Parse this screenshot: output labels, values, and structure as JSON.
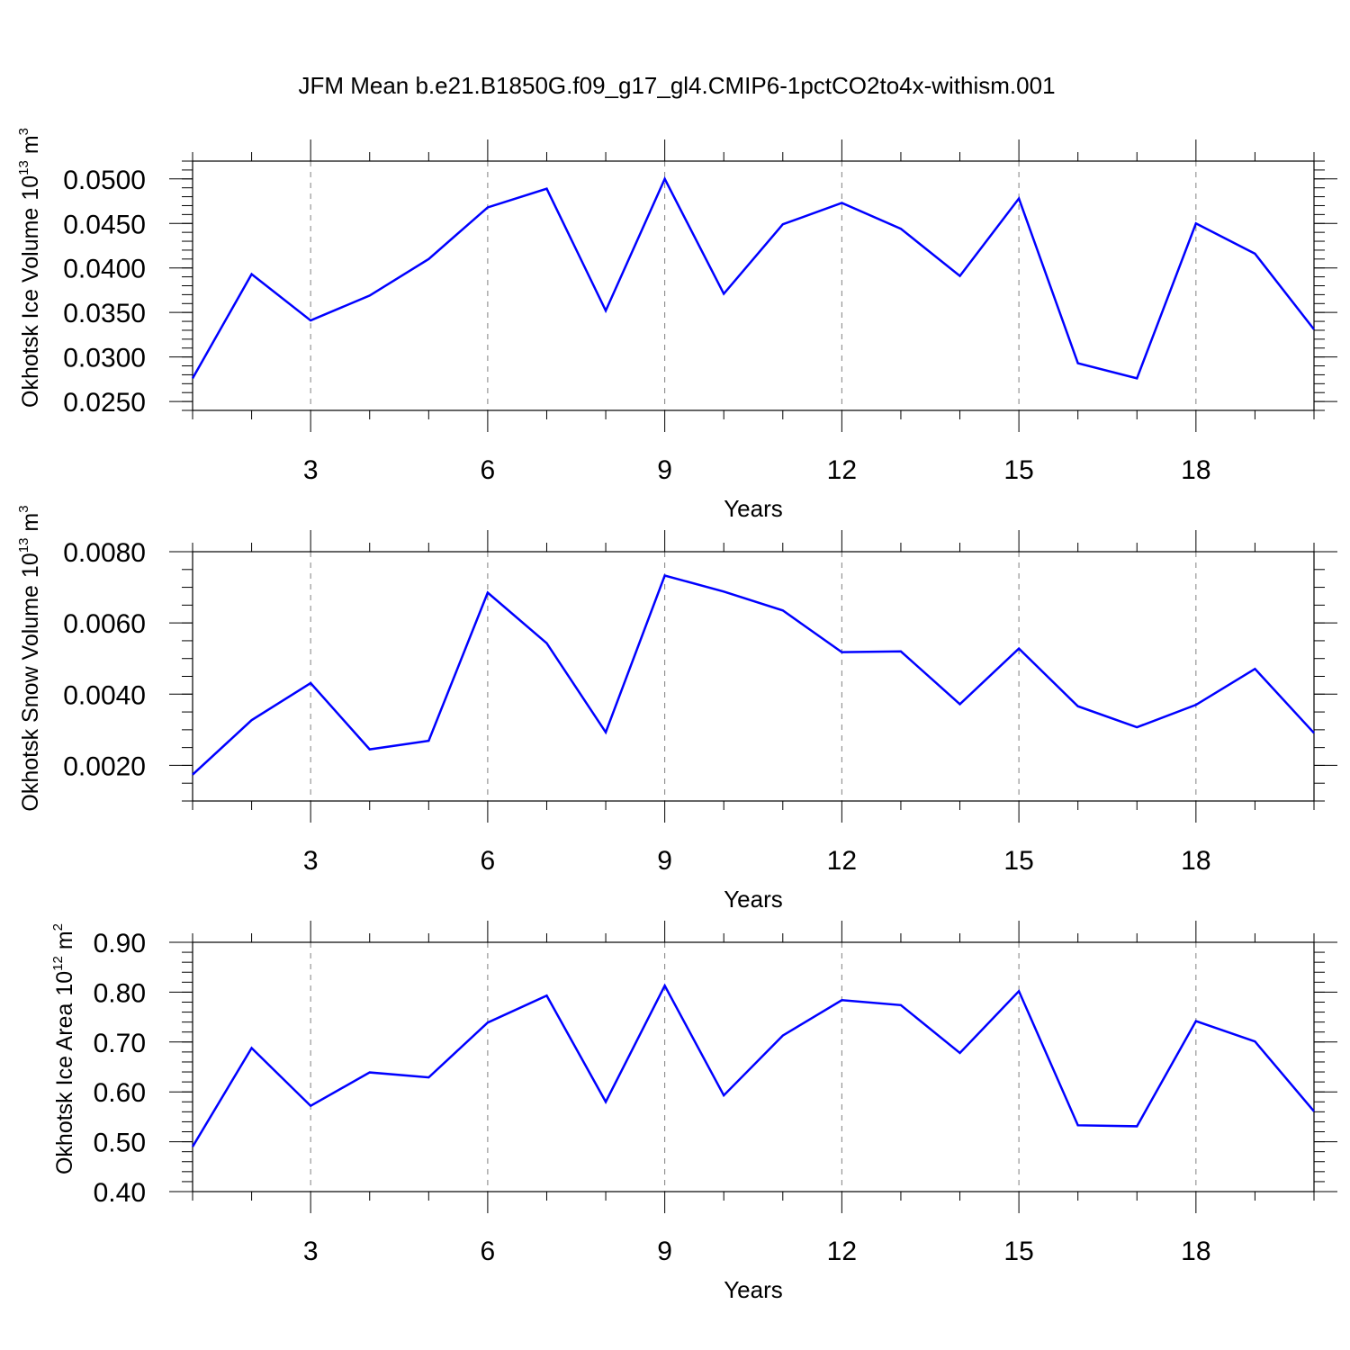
{
  "title": "JFM Mean b.e21.B1850G.f09_g17_gl4.CMIP6-1pctCO2to4x-withism.001",
  "colors": {
    "line": "#0000ff",
    "axis": "#000000",
    "grid": "#808080",
    "background": "#ffffff"
  },
  "chart_data": [
    {
      "type": "line",
      "title": "JFM Mean b.e21.B1850G.f09_g17_gl4.CMIP6-1pctCO2to4x-withism.001",
      "xlabel": "Years",
      "ylabel": "Okhotsk Ice Volume",
      "ylabel_unit": {
        "base": "10",
        "exp": "13",
        "unit": "m",
        "unit_exp": "3"
      },
      "xlim": [
        1,
        20
      ],
      "ylim": [
        0.024,
        0.052
      ],
      "x_ticks": [
        3,
        6,
        9,
        12,
        15,
        18
      ],
      "x_tick_labels": [
        "3",
        "6",
        "9",
        "12",
        "15",
        "18"
      ],
      "y_ticks": [
        0.025,
        0.03,
        0.035,
        0.04,
        0.045,
        0.05
      ],
      "y_tick_labels": [
        "0.0250",
        "0.0300",
        "0.0350",
        "0.0400",
        "0.0450",
        "0.0500"
      ],
      "y_minor_step": 0.001,
      "grid": "vertical dashed at major x ticks",
      "series": [
        {
          "name": "Okhotsk Ice Volume",
          "x": [
            1,
            2,
            3,
            4,
            5,
            6,
            7,
            8,
            9,
            10,
            11,
            12,
            13,
            14,
            15,
            16,
            17,
            18,
            19,
            20
          ],
          "values": [
            0.0276,
            0.0393,
            0.0341,
            0.0369,
            0.041,
            0.0468,
            0.0489,
            0.0352,
            0.05,
            0.0371,
            0.0449,
            0.0473,
            0.0444,
            0.0391,
            0.0478,
            0.0293,
            0.0276,
            0.045,
            0.0416,
            0.0331
          ]
        }
      ]
    },
    {
      "type": "line",
      "xlabel": "Years",
      "ylabel": "Okhotsk Snow Volume",
      "ylabel_unit": {
        "base": "10",
        "exp": "13",
        "unit": "m",
        "unit_exp": "3"
      },
      "xlim": [
        1,
        20
      ],
      "ylim": [
        0.001,
        0.008
      ],
      "x_ticks": [
        3,
        6,
        9,
        12,
        15,
        18
      ],
      "x_tick_labels": [
        "3",
        "6",
        "9",
        "12",
        "15",
        "18"
      ],
      "y_ticks": [
        0.002,
        0.004,
        0.006,
        0.008
      ],
      "y_tick_labels": [
        "0.0020",
        "0.0040",
        "0.0060",
        "0.0080"
      ],
      "y_minor_step": 0.0005,
      "grid": "vertical dashed at major x ticks",
      "series": [
        {
          "name": "Okhotsk Snow Volume",
          "x": [
            1,
            2,
            3,
            4,
            5,
            6,
            7,
            8,
            9,
            10,
            11,
            12,
            13,
            14,
            15,
            16,
            17,
            18,
            19,
            20
          ],
          "values": [
            0.00174,
            0.00327,
            0.00431,
            0.00245,
            0.00269,
            0.00685,
            0.00543,
            0.00293,
            0.00733,
            0.00688,
            0.00635,
            0.00518,
            0.0052,
            0.00372,
            0.00528,
            0.00366,
            0.00307,
            0.0037,
            0.00471,
            0.00291
          ]
        }
      ]
    },
    {
      "type": "line",
      "xlabel": "Years",
      "ylabel": "Okhotsk Ice Area",
      "ylabel_unit": {
        "base": "10",
        "exp": "12",
        "unit": "m",
        "unit_exp": "2"
      },
      "xlim": [
        1,
        20
      ],
      "ylim": [
        0.4,
        0.9
      ],
      "x_ticks": [
        3,
        6,
        9,
        12,
        15,
        18
      ],
      "x_tick_labels": [
        "3",
        "6",
        "9",
        "12",
        "15",
        "18"
      ],
      "y_ticks": [
        0.4,
        0.5,
        0.6,
        0.7,
        0.8,
        0.9
      ],
      "y_tick_labels": [
        "0.40",
        "0.50",
        "0.60",
        "0.70",
        "0.80",
        "0.90"
      ],
      "y_minor_step": 0.02,
      "grid": "vertical dashed at major x ticks",
      "series": [
        {
          "name": "Okhotsk Ice Area",
          "x": [
            1,
            2,
            3,
            4,
            5,
            6,
            7,
            8,
            9,
            10,
            11,
            12,
            13,
            14,
            15,
            16,
            17,
            18,
            19,
            20
          ],
          "values": [
            0.49,
            0.688,
            0.572,
            0.639,
            0.629,
            0.739,
            0.793,
            0.58,
            0.813,
            0.593,
            0.713,
            0.784,
            0.774,
            0.678,
            0.802,
            0.533,
            0.531,
            0.742,
            0.701,
            0.561
          ]
        }
      ]
    }
  ]
}
